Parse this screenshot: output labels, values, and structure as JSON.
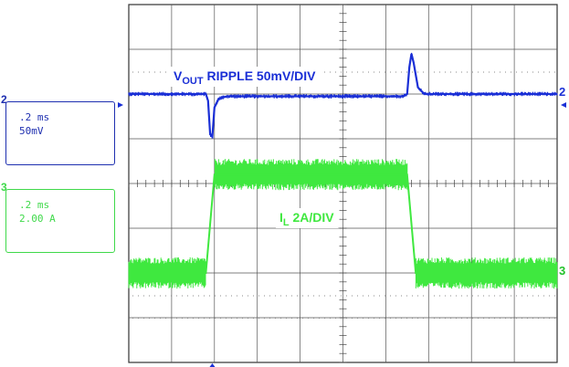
{
  "chart_data": {
    "type": "line",
    "title": "",
    "grid": {
      "divisions_x": 10,
      "divisions_y": 8
    },
    "series": [
      {
        "name": "VOUT RIPPLE 50mV/DIV",
        "channel": "2",
        "color": "#1a2fd6",
        "time_per_div": ".2 ms",
        "volts_per_div": "50mV",
        "marker_label": "2",
        "points": [
          [
            0.0,
            0.0
          ],
          [
            1.8,
            0.0
          ],
          [
            1.85,
            -0.15
          ],
          [
            1.9,
            -0.9
          ],
          [
            1.95,
            -0.95
          ],
          [
            2.0,
            -0.3
          ],
          [
            2.1,
            -0.1
          ],
          [
            2.3,
            -0.05
          ],
          [
            6.4,
            -0.05
          ],
          [
            6.5,
            0.0
          ],
          [
            6.55,
            0.6
          ],
          [
            6.6,
            0.9
          ],
          [
            6.65,
            0.7
          ],
          [
            6.75,
            0.15
          ],
          [
            6.9,
            0.0
          ],
          [
            10.0,
            0.0
          ]
        ],
        "noise_amplitude": 0.05
      },
      {
        "name": "IL 2A/DIV",
        "channel": "3",
        "color": "#3fe83f",
        "time_per_div": ".2 ms",
        "amps_per_div": "2.00 A",
        "marker_label": "3",
        "points": [
          [
            0.0,
            0.0
          ],
          [
            1.8,
            0.0
          ],
          [
            2.0,
            2.2
          ],
          [
            6.5,
            2.2
          ],
          [
            6.7,
            0.0
          ],
          [
            10.0,
            0.0
          ]
        ],
        "noise_amplitude": 0.35
      }
    ],
    "annotations": {
      "vout_label_main": "V",
      "vout_label_sub": "OUT",
      "vout_label_rest": " RIPPLE  50mV/DIV",
      "il_label_main": "I",
      "il_label_sub": "L",
      "il_label_rest": "  2A/DIV"
    }
  },
  "channel_boxes": {
    "ch2": {
      "number": "2",
      "time": ".2 ms",
      "scale": "50mV"
    },
    "ch3": {
      "number": "3",
      "time": ".2 ms",
      "scale": "2.00 A"
    }
  }
}
